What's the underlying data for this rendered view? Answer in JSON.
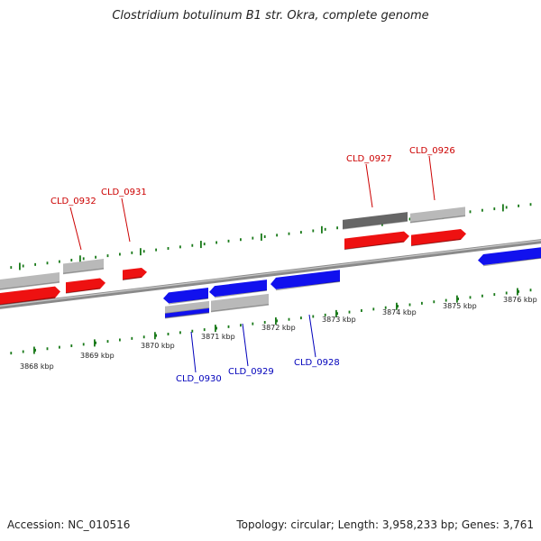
{
  "title": "Clostridium botulinum B1 str. Okra, complete genome",
  "footer": {
    "accession": "Accession: NC_010516",
    "summary": "Topology: circular; Length: 3,958,233 bp; Genes: 3,761"
  },
  "colors": {
    "forward_gene": "#ee1111",
    "reverse_gene": "#1111ee",
    "feature_light": "#b9b9b9",
    "feature_dark": "#666666",
    "backbone": "#8a8a8a",
    "tick": "#1a7a1a",
    "forward_label": "#cc0000",
    "reverse_label": "#0000bb"
  },
  "scale": {
    "unit": "kbp",
    "labels": [
      "3868 kbp",
      "3869 kbp",
      "3870 kbp",
      "3871 kbp",
      "3872 kbp",
      "3873 kbp",
      "3874 kbp",
      "3875 kbp",
      "3876 kbp"
    ]
  },
  "gene_labels": {
    "forward": [
      "CLD_0932",
      "CLD_0931",
      "CLD_0927",
      "CLD_0926"
    ],
    "reverse": [
      "CLD_0930",
      "CLD_0929",
      "CLD_0928"
    ]
  }
}
